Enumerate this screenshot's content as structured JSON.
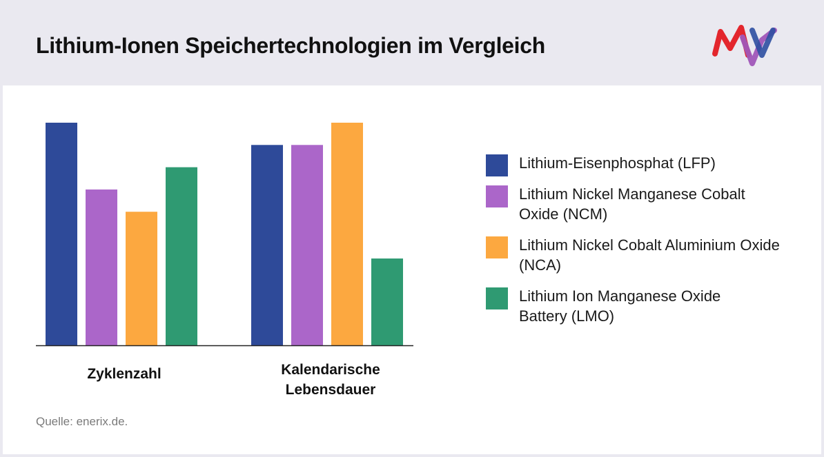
{
  "header": {
    "title": "Lithium-Ionen Speichertechnologien im Vergleich"
  },
  "source": "Quelle: enerix.de.",
  "colors": {
    "LFP": "#2e4a99",
    "NCM": "#ab66c9",
    "NCA": "#fca840",
    "LMO": "#2f9a72"
  },
  "chart_data": {
    "type": "bar",
    "title": "Lithium-Ionen Speichertechnologien im Vergleich",
    "categories": [
      "Zyklenzahl",
      "Kalendarische Lebensdauer"
    ],
    "series": [
      {
        "name": "Lithium-Eisenphosphat (LFP)",
        "color": "#2e4a99",
        "values": [
          100,
          90
        ]
      },
      {
        "name": "Lithium Nickel Manganese Cobalt Oxide (NCM)",
        "color": "#ab66c9",
        "values": [
          70,
          90
        ]
      },
      {
        "name": "Lithium Nickel Cobalt Aluminium Oxide (NCA)",
        "color": "#fca840",
        "values": [
          60,
          100
        ]
      },
      {
        "name": "Lithium Ion Manganese Oxide Battery (LMO)",
        "color": "#2f9a72",
        "values": [
          80,
          39
        ]
      }
    ],
    "ylim": [
      0,
      100
    ],
    "grid": false,
    "legend_position": "right",
    "xlabel": "",
    "ylabel": ""
  }
}
